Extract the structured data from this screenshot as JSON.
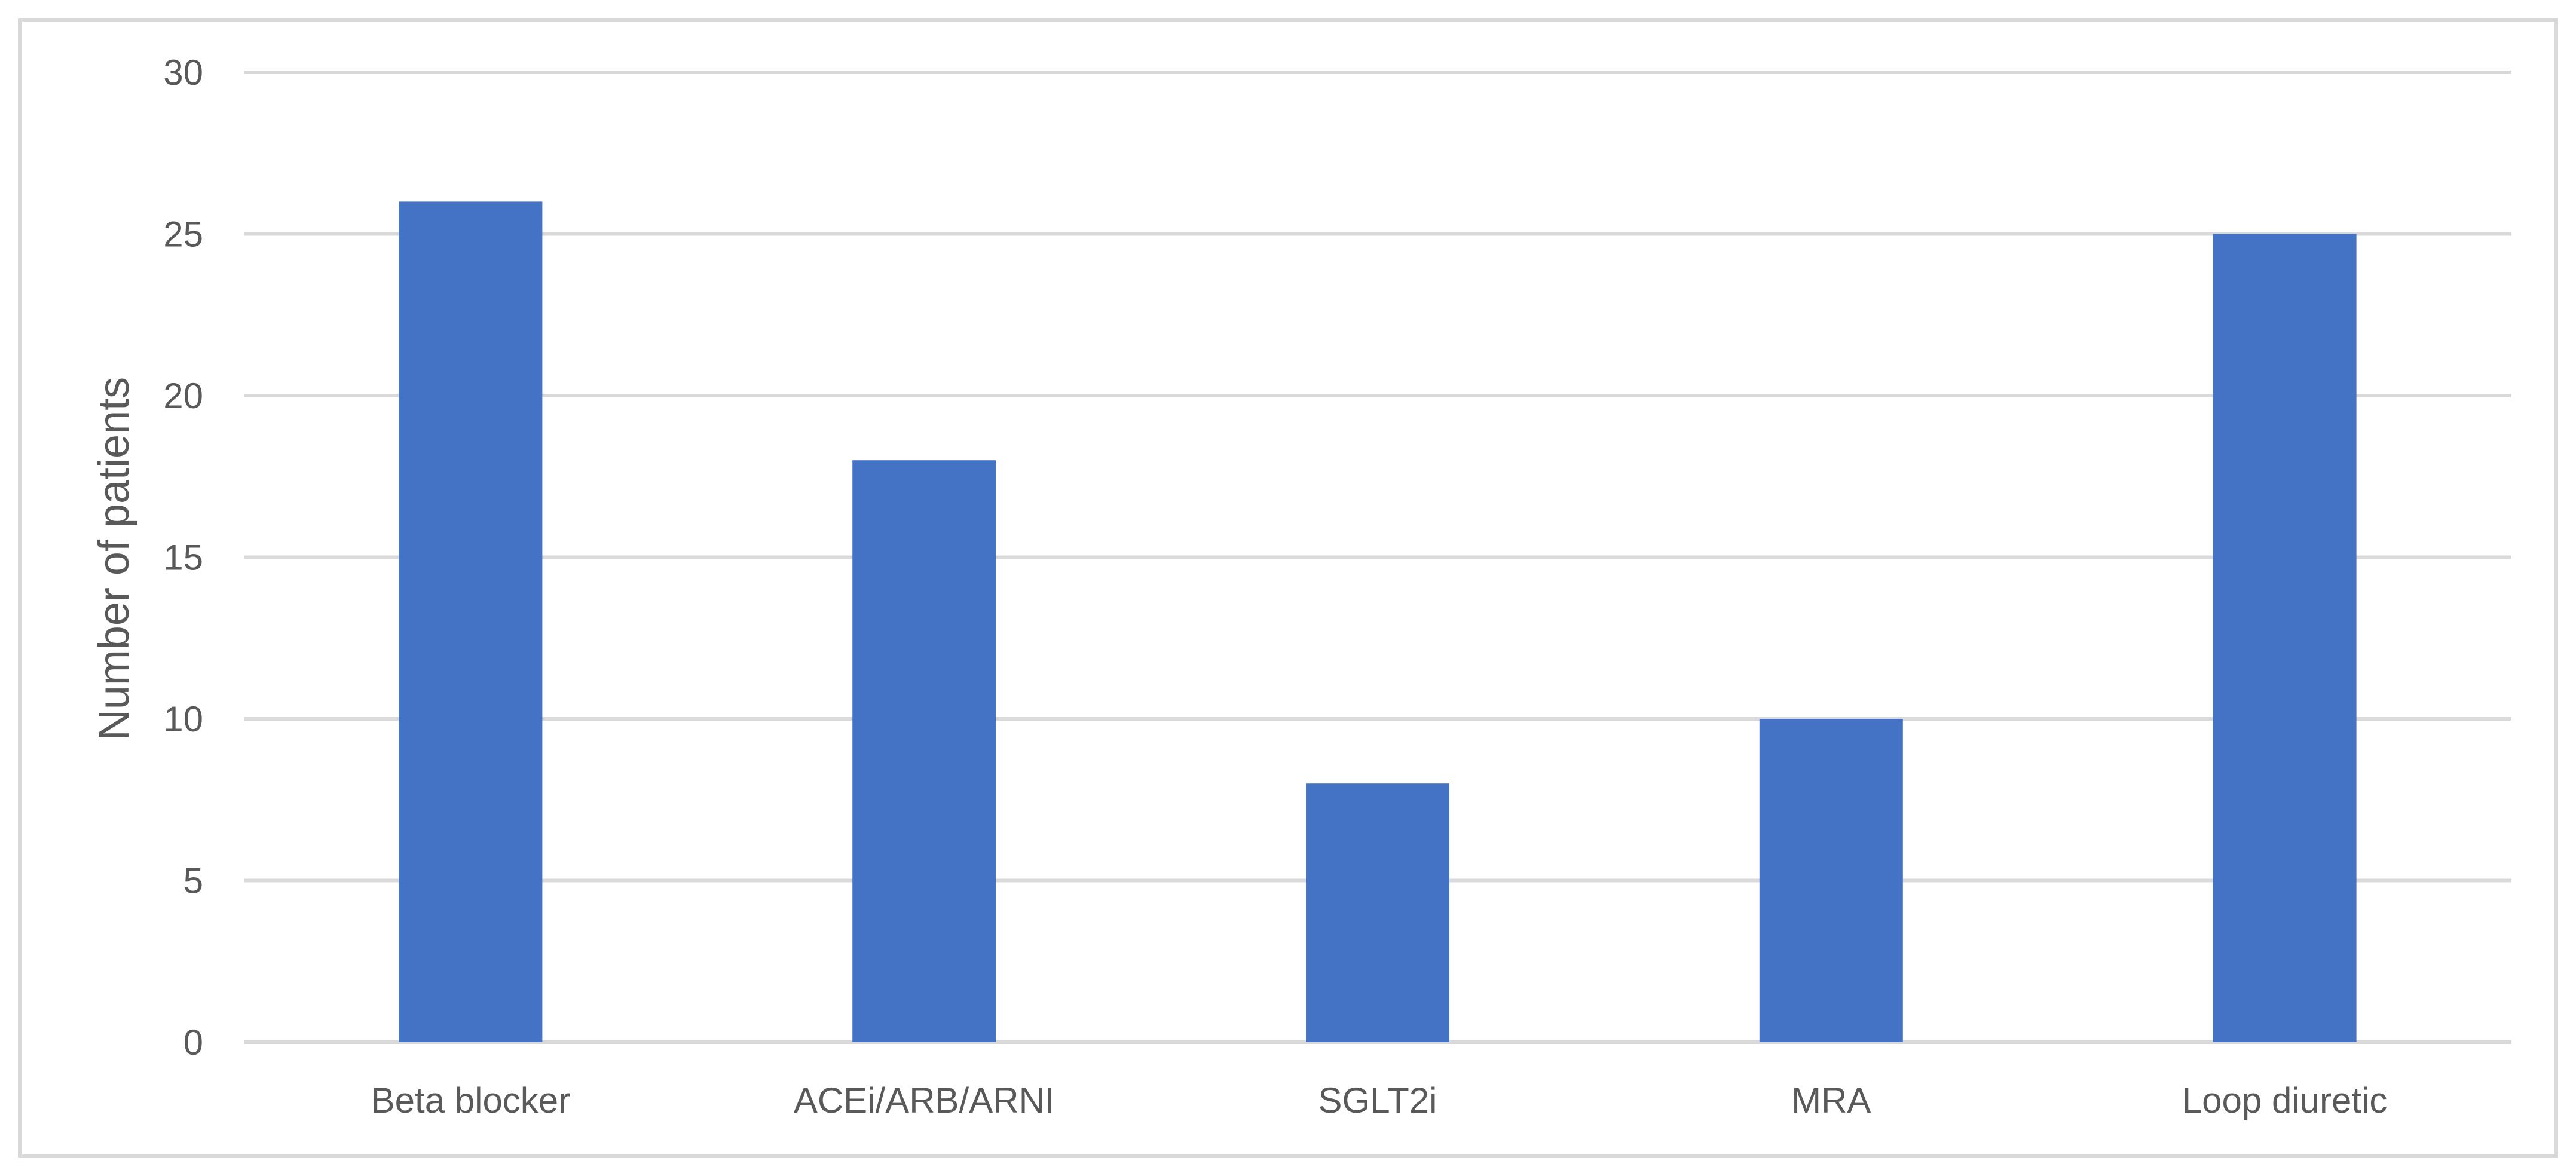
{
  "chart_data": {
    "type": "bar",
    "title": "",
    "xlabel": "",
    "ylabel": "Number of patients",
    "categories": [
      "Beta blocker",
      "ACEi/ARB/ARNI",
      "SGLT2i",
      "MRA",
      "Loop diuretic"
    ],
    "values": [
      26,
      18,
      8,
      10,
      25
    ],
    "ylim": [
      0,
      30
    ],
    "yticks": [
      0,
      5,
      10,
      15,
      20,
      25,
      30
    ],
    "bar_color": "#4472c4",
    "grid": true,
    "legend": "none"
  }
}
